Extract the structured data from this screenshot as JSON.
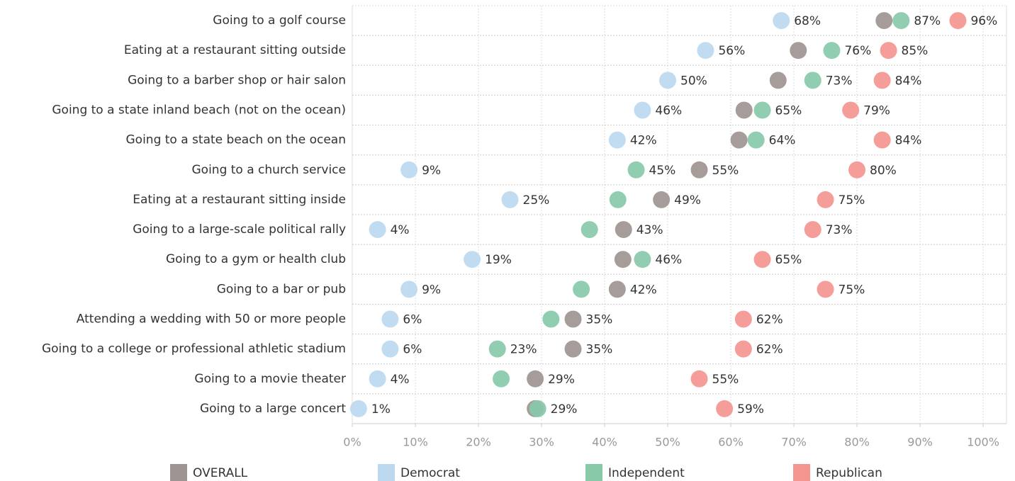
{
  "chart_data": {
    "type": "dot",
    "categories": [
      "Going to a golf course",
      "Eating at a restaurant sitting outside",
      "Going to a barber shop or hair salon",
      "Going to a state inland beach (not on the ocean)",
      "Going to a state beach on the ocean",
      "Going to a church service",
      "Eating at a restaurant sitting inside",
      "Going to a large-scale political rally",
      "Going to a gym or health club",
      "Going to a bar or pub",
      "Attending a wedding with 50 or more people",
      "Going to a college or professional athletic stadium",
      "Going to a movie theater",
      "Going to a large concert"
    ],
    "series": [
      {
        "name": "OVERALL",
        "color": "#9e9593",
        "values": [
          84.3,
          70.7,
          67.5,
          62.1,
          61.3,
          55,
          49,
          43,
          42.9,
          42,
          35,
          35,
          29,
          29.0
        ],
        "value_labels": [
          null,
          null,
          null,
          null,
          null,
          "55%",
          "49%",
          "43%",
          null,
          "42%",
          "35%",
          "35%",
          "29%",
          null
        ]
      },
      {
        "name": "Democrat",
        "color": "#bcd9f0",
        "values": [
          68,
          56,
          50,
          46,
          42,
          9,
          25,
          4,
          19,
          9,
          6,
          6,
          4,
          1
        ],
        "value_labels": [
          "68%",
          "56%",
          "50%",
          "46%",
          "42%",
          "9%",
          "25%",
          "4%",
          "19%",
          "9%",
          "6%",
          "6%",
          "4%",
          "1%"
        ]
      },
      {
        "name": "Independent",
        "color": "#88c9aa",
        "values": [
          87,
          76,
          73,
          65,
          64,
          45,
          42.1,
          37.6,
          46,
          36.3,
          31.5,
          23,
          23.6,
          29.4
        ],
        "value_labels": [
          "87%",
          "76%",
          "73%",
          "65%",
          "64%",
          "45%",
          null,
          null,
          "46%",
          null,
          null,
          "23%",
          null,
          "29%"
        ]
      },
      {
        "name": "Republican",
        "color": "#f4958f",
        "values": [
          96,
          85,
          84,
          79,
          84,
          80,
          75,
          73,
          65,
          75,
          62,
          62,
          55,
          59
        ],
        "value_labels": [
          "96%",
          "85%",
          "84%",
          "79%",
          "84%",
          "80%",
          "75%",
          "73%",
          "65%",
          "75%",
          "62%",
          "62%",
          "55%",
          "59%"
        ]
      }
    ],
    "xlim": [
      0,
      103.7
    ],
    "xticks": [
      {
        "value": 0,
        "label": "0%"
      },
      {
        "value": 10,
        "label": "10%"
      },
      {
        "value": 20,
        "label": "20%"
      },
      {
        "value": 30,
        "label": "30%"
      },
      {
        "value": 40,
        "label": "40%"
      },
      {
        "value": 50,
        "label": "50%"
      },
      {
        "value": 60,
        "label": "60%"
      },
      {
        "value": 70,
        "label": "70%"
      },
      {
        "value": 80,
        "label": "80%"
      },
      {
        "value": 90,
        "label": "90%"
      },
      {
        "value": 100,
        "label": "100%"
      }
    ],
    "grid": true
  }
}
